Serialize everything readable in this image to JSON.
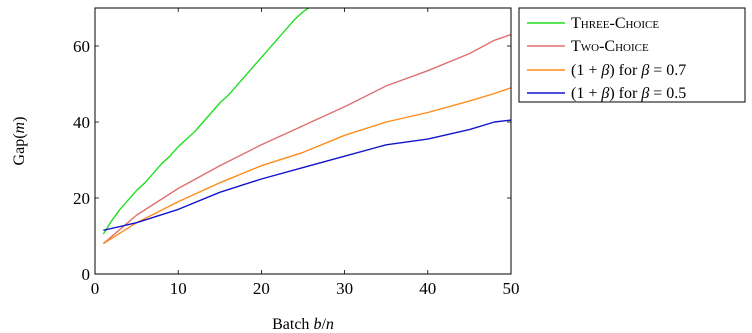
{
  "chart_data": {
    "type": "line",
    "xlabel": "Batch b/n",
    "ylabel": "Gap(m)",
    "xlim": [
      0,
      50
    ],
    "ylim": [
      0,
      70
    ],
    "xticks": [
      0,
      10,
      20,
      30,
      40,
      50
    ],
    "yticks": [
      0,
      20,
      40,
      60
    ],
    "grid": false,
    "legend_position": "outside-right",
    "series": [
      {
        "name": "Three-Choice",
        "color": "#22dd22",
        "x": [
          1,
          2,
          3,
          4,
          5,
          6,
          7,
          8,
          9,
          10,
          11,
          12,
          13,
          14,
          15,
          16,
          17,
          18,
          19,
          20,
          21,
          22,
          23,
          24,
          25,
          26,
          27
        ],
        "y": [
          10.5,
          14,
          17,
          19.5,
          22,
          24,
          26.5,
          29,
          31,
          33.5,
          35.5,
          37.5,
          40,
          42.5,
          45,
          47,
          49.5,
          52,
          54.5,
          57,
          59.5,
          62,
          64.5,
          67,
          69,
          70.5,
          72
        ]
      },
      {
        "name": "Two-Choice",
        "color": "#e07070",
        "x": [
          1,
          5,
          10,
          15,
          20,
          25,
          30,
          35,
          40,
          45,
          48,
          50
        ],
        "y": [
          8,
          15.5,
          22.5,
          28.5,
          34,
          39,
          44,
          49.5,
          53.5,
          58,
          61.5,
          63
        ]
      },
      {
        "name": "(1 + β) for β = 0.7",
        "color": "#ff8c1a",
        "x": [
          1,
          5,
          10,
          15,
          20,
          25,
          30,
          35,
          40,
          45,
          48,
          50
        ],
        "y": [
          8,
          13.5,
          19,
          24,
          28.5,
          32,
          36.5,
          40,
          42.5,
          45.5,
          47.5,
          49
        ]
      },
      {
        "name": "(1 + β) for β = 0.5",
        "color": "#1414cc",
        "x": [
          1,
          5,
          10,
          15,
          20,
          25,
          30,
          35,
          40,
          45,
          48,
          50
        ],
        "y": [
          11.5,
          13.5,
          17,
          21.5,
          25,
          28,
          31,
          34,
          35.5,
          38,
          40,
          40.5
        ]
      }
    ]
  },
  "legend": {
    "entries": [
      {
        "label": "Three-Choice",
        "color": "#22dd22"
      },
      {
        "label": "Two-Choice",
        "color": "#e07070"
      },
      {
        "label": "(1 + β) for β = 0.7",
        "color": "#ff8c1a"
      },
      {
        "label": "(1 + β) for β = 0.5",
        "color": "#1414cc"
      }
    ]
  }
}
